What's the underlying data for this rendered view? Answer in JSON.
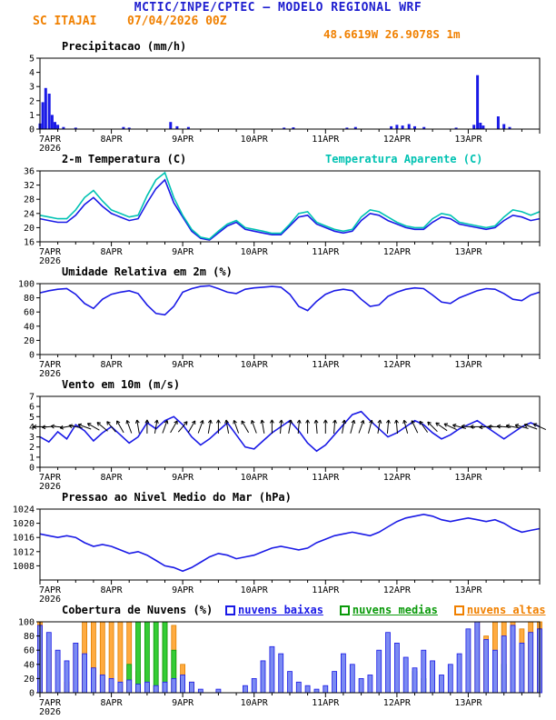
{
  "header": {
    "title": "MCTIC/INPE/CPTEC — MODELO REGIONAL WRF",
    "station": "SC ITAJAI",
    "run": "07/04/2026 00Z",
    "location": "48.6619W 26.9078S 1m"
  },
  "colors": {
    "title_blue": "#1d1dcf",
    "orange": "#f08000",
    "line_blue": "#1a1ae6",
    "apparent_cyan": "#00c2b2",
    "cloud_low": "#1a1ae6",
    "cloud_mid": "#0a9a0a",
    "cloud_high": "#f08000",
    "axis_black": "#000000"
  },
  "x_axis": {
    "labels": [
      "7APR",
      "8APR",
      "9APR",
      "10APR",
      "11APR",
      "12APR",
      "13APR"
    ],
    "year": "2026",
    "range_days": [
      0,
      7
    ]
  },
  "chart_data": [
    {
      "id": "precip",
      "kind": "bars-sparse",
      "type": "bar",
      "title": "Precipitacao (mm/h)",
      "ylim": [
        0,
        5
      ],
      "yticks": [
        0,
        1,
        2,
        3,
        4,
        5
      ],
      "bar_color": "#1a1ae6",
      "points": [
        [
          0.0,
          0.4
        ],
        [
          0.04,
          1.9
        ],
        [
          0.08,
          2.9
        ],
        [
          0.13,
          2.5
        ],
        [
          0.17,
          1.0
        ],
        [
          0.21,
          0.5
        ],
        [
          0.25,
          0.3
        ],
        [
          0.33,
          0.15
        ],
        [
          0.5,
          0.1
        ],
        [
          1.17,
          0.15
        ],
        [
          1.25,
          0.1
        ],
        [
          1.83,
          0.5
        ],
        [
          1.92,
          0.2
        ],
        [
          2.08,
          0.15
        ],
        [
          3.42,
          0.1
        ],
        [
          3.55,
          0.12
        ],
        [
          4.3,
          0.1
        ],
        [
          4.42,
          0.15
        ],
        [
          4.92,
          0.2
        ],
        [
          5.0,
          0.3
        ],
        [
          5.08,
          0.25
        ],
        [
          5.17,
          0.35
        ],
        [
          5.25,
          0.2
        ],
        [
          5.38,
          0.15
        ],
        [
          5.83,
          0.1
        ],
        [
          6.08,
          0.3
        ],
        [
          6.13,
          3.8
        ],
        [
          6.17,
          0.45
        ],
        [
          6.21,
          0.25
        ],
        [
          6.42,
          0.9
        ],
        [
          6.5,
          0.35
        ],
        [
          6.58,
          0.15
        ]
      ]
    },
    {
      "id": "temp2m",
      "kind": "lines",
      "type": "line",
      "title": "2-m Temperatura (C)",
      "title_right": "Temperatura Aparente (C)",
      "ylim": [
        16,
        36
      ],
      "yticks": [
        16,
        20,
        24,
        28,
        32,
        36
      ],
      "step_days": 0.125,
      "series": [
        {
          "id": "temperature-line",
          "name": "2-m Temperatura (C)",
          "color": "#1a1ae6",
          "values": [
            22.5,
            22,
            21.5,
            21.5,
            23.5,
            26.5,
            28.5,
            26,
            24,
            23,
            22,
            22.5,
            27,
            31,
            33.5,
            27,
            23,
            19,
            17,
            16.5,
            18.5,
            20.5,
            21.5,
            19.5,
            19,
            18.5,
            18,
            18,
            20.5,
            23,
            23.5,
            21,
            20,
            19,
            18.5,
            19,
            22,
            24,
            23.5,
            22,
            21,
            20,
            19.5,
            19.5,
            21.5,
            23,
            22.5,
            21,
            20.5,
            20,
            19.5,
            20,
            22,
            23.5,
            23,
            22,
            22.5
          ]
        },
        {
          "id": "apparent-temperature-line",
          "name": "Temperatura Aparente (C)",
          "color": "#00c2b2",
          "values": [
            23.5,
            23,
            22.5,
            22.5,
            25,
            28.5,
            30.5,
            27.5,
            25,
            24,
            23,
            23.5,
            29,
            33.5,
            35.5,
            28.5,
            23.5,
            19.5,
            17.3,
            16.8,
            19,
            21,
            22,
            20,
            19.5,
            19,
            18.4,
            18.4,
            21,
            24,
            24.5,
            21.5,
            20.5,
            19.5,
            19,
            19.5,
            23,
            25,
            24.5,
            23,
            21.5,
            20.5,
            20,
            20,
            22.5,
            24,
            23.5,
            21.5,
            21,
            20.5,
            20,
            20.5,
            23,
            25,
            24.5,
            23.5,
            24.5
          ]
        }
      ]
    },
    {
      "id": "rh2m",
      "kind": "lines",
      "type": "line",
      "title": "Umidade Relativa em 2m (%)",
      "ylim": [
        0,
        100
      ],
      "yticks": [
        0,
        20,
        40,
        60,
        80,
        100
      ],
      "step_days": 0.125,
      "series": [
        {
          "id": "humidity-line",
          "name": "Umidade Relativa em 2m (%)",
          "color": "#1a1ae6",
          "values": [
            87,
            90,
            92,
            93,
            85,
            72,
            65,
            78,
            85,
            88,
            90,
            86,
            70,
            58,
            56,
            68,
            88,
            93,
            96,
            97,
            93,
            88,
            86,
            92,
            94,
            95,
            96,
            95,
            85,
            68,
            62,
            75,
            85,
            90,
            92,
            90,
            78,
            68,
            70,
            82,
            88,
            92,
            94,
            93,
            84,
            74,
            72,
            80,
            85,
            90,
            93,
            92,
            86,
            78,
            76,
            84,
            88
          ]
        }
      ]
    },
    {
      "id": "wind10m",
      "kind": "wind",
      "type": "line",
      "title": "Vento em 10m (m/s)",
      "ylim": [
        0,
        7
      ],
      "yticks": [
        0,
        1,
        2,
        3,
        4,
        5,
        6,
        7
      ],
      "step_days": 0.125,
      "series": [
        {
          "id": "wind-speed-line",
          "name": "Vento em 10m (m/s)",
          "color": "#1a1ae6",
          "values": [
            3.0,
            2.5,
            3.5,
            2.8,
            4.2,
            3.6,
            2.6,
            3.4,
            4.0,
            3.2,
            2.4,
            3.0,
            4.4,
            3.8,
            4.6,
            5.0,
            4.2,
            3.0,
            2.2,
            2.8,
            3.6,
            4.4,
            3.2,
            2.0,
            1.8,
            2.6,
            3.4,
            4.0,
            4.6,
            3.6,
            2.4,
            1.6,
            2.2,
            3.2,
            4.2,
            5.2,
            5.5,
            4.6,
            3.8,
            3.0,
            3.4,
            4.0,
            4.6,
            4.2,
            3.4,
            2.8,
            3.2,
            3.8,
            4.2,
            4.6,
            4.0,
            3.4,
            2.8,
            3.4,
            4.0,
            4.4,
            4.0
          ]
        }
      ],
      "arrows": {
        "level": 4.0,
        "color": "#000000",
        "dirs_deg": [
          180,
          185,
          175,
          190,
          170,
          160,
          150,
          140,
          130,
          120,
          110,
          100,
          90,
          80,
          70,
          60,
          50,
          60,
          70,
          80,
          90,
          100,
          110,
          120,
          110,
          100,
          90,
          85,
          80,
          85,
          90,
          95,
          90,
          85,
          80,
          75,
          70,
          75,
          80,
          85,
          95,
          105,
          115,
          125,
          135,
          145,
          155,
          165,
          175,
          180,
          185,
          180,
          175,
          170,
          165,
          160,
          155
        ]
      }
    },
    {
      "id": "mslp",
      "kind": "lines",
      "type": "line",
      "title": "Pressao ao Nivel Medio do Mar (hPa)",
      "ylim": [
        1004,
        1024
      ],
      "yticks": [
        1008,
        1012,
        1016,
        1020,
        1024
      ],
      "step_days": 0.125,
      "series": [
        {
          "id": "pressure-line",
          "name": "Pressao ao Nivel Medio do Mar (hPa)",
          "color": "#1a1ae6",
          "values": [
            1017,
            1016.5,
            1016,
            1016.5,
            1016,
            1014.5,
            1013.5,
            1014,
            1013.5,
            1012.5,
            1011.5,
            1012,
            1011,
            1009.5,
            1008,
            1007.5,
            1006.5,
            1007.5,
            1009,
            1010.5,
            1011.5,
            1011,
            1010,
            1010.5,
            1011,
            1012,
            1013,
            1013.5,
            1013,
            1012.5,
            1013,
            1014.5,
            1015.5,
            1016.5,
            1017,
            1017.5,
            1017,
            1016.5,
            1017.5,
            1019,
            1020.5,
            1021.5,
            1022,
            1022.5,
            1022,
            1021,
            1020.5,
            1021,
            1021.5,
            1021,
            1020.5,
            1021,
            1020,
            1018.5,
            1017.5,
            1018,
            1018.5
          ]
        }
      ]
    },
    {
      "id": "clouds",
      "kind": "bars3",
      "type": "bar",
      "title": "Cobertura de Nuvens (%)",
      "ylim": [
        0,
        100
      ],
      "yticks": [
        0,
        20,
        40,
        60,
        80,
        100
      ],
      "step_days": 0.125,
      "series": [
        {
          "id": "low-cloud-bars",
          "name": "nuvens baixas",
          "color": "#1a1ae6",
          "fill": "#7b8bf2",
          "values": [
            95,
            85,
            60,
            45,
            70,
            55,
            35,
            25,
            20,
            15,
            18,
            12,
            15,
            10,
            15,
            20,
            25,
            15,
            5,
            0,
            5,
            0,
            0,
            10,
            20,
            45,
            65,
            55,
            30,
            15,
            10,
            5,
            10,
            30,
            55,
            40,
            20,
            25,
            60,
            85,
            70,
            50,
            35,
            60,
            45,
            25,
            40,
            55,
            90,
            100,
            75,
            60,
            80,
            95,
            70,
            85,
            90
          ]
        },
        {
          "id": "mid-cloud-bars",
          "name": "nuvens medias",
          "color": "#0a9a0a",
          "fill": "#35cc35",
          "values": [
            0,
            0,
            0,
            0,
            0,
            0,
            0,
            0,
            0,
            0,
            40,
            100,
            100,
            100,
            100,
            60,
            20,
            0,
            0,
            0,
            0,
            0,
            0,
            0,
            0,
            0,
            0,
            0,
            0,
            0,
            0,
            0,
            0,
            0,
            0,
            0,
            0,
            0,
            0,
            0,
            0,
            0,
            30,
            20,
            0,
            0,
            0,
            0,
            0,
            0,
            0,
            0,
            40,
            0,
            0,
            0,
            0
          ]
        },
        {
          "id": "high-cloud-bars",
          "name": "nuvens altas",
          "color": "#e08000",
          "fill": "#ffab40",
          "values": [
            100,
            60,
            0,
            15,
            70,
            100,
            100,
            100,
            100,
            100,
            100,
            30,
            10,
            10,
            100,
            95,
            40,
            15,
            0,
            0,
            0,
            0,
            0,
            0,
            0,
            0,
            0,
            0,
            0,
            0,
            0,
            0,
            0,
            0,
            0,
            0,
            0,
            0,
            0,
            0,
            0,
            0,
            0,
            0,
            0,
            0,
            0,
            0,
            60,
            100,
            80,
            100,
            100,
            100,
            90,
            100,
            100
          ]
        }
      ]
    }
  ]
}
